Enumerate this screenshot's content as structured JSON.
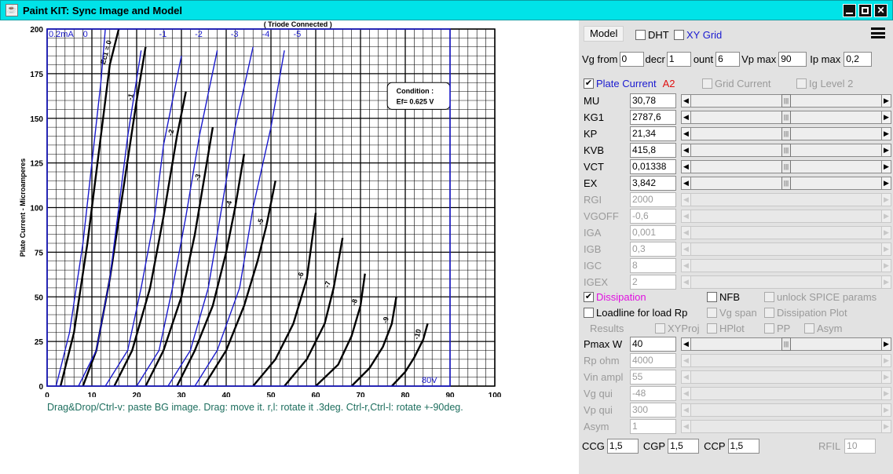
{
  "window": {
    "title": "Paint KIT: Sync Image and Model"
  },
  "help": "Drag&Drop/Ctrl-v: paste BG image. Drag: move it. r,l: rotate it .3deg. Ctrl-r,Ctrl-l: rotate +-90deg.",
  "chart_data": {
    "type": "line",
    "title": "( Triode Connected )",
    "ylabel": "Plate Current - Microamperes",
    "xlim": [
      0,
      100
    ],
    "ylim": [
      0,
      200
    ],
    "xticks": [
      "0",
      "10",
      "20",
      "30",
      "40",
      "50",
      "60",
      "70",
      "80",
      "90",
      "100"
    ],
    "yticks": [
      "0",
      "25",
      "50",
      "75",
      "100",
      "125",
      "150",
      "175",
      "200"
    ],
    "condition_title": "Condition :",
    "condition_value": "Ef= 0.625 V",
    "overlay_labels": {
      "ima": "0.2mA",
      "v": "80V"
    },
    "top_labels": [
      "0",
      "-1",
      "-2",
      "-3",
      "-4",
      "-5"
    ],
    "image_curves": [
      {
        "label": "Ec1 = 0",
        "x": [
          3,
          6,
          9,
          12,
          14,
          16
        ],
        "y": [
          0,
          30,
          80,
          140,
          180,
          200
        ]
      },
      {
        "label": "-1",
        "x": [
          8,
          11,
          14,
          17,
          20,
          22
        ],
        "y": [
          0,
          20,
          60,
          110,
          160,
          190
        ]
      },
      {
        "label": "-2",
        "x": [
          15,
          19,
          23,
          26,
          29,
          31
        ],
        "y": [
          0,
          20,
          55,
          95,
          140,
          165
        ]
      },
      {
        "label": "-3",
        "x": [
          22,
          26,
          30,
          33,
          35,
          37
        ],
        "y": [
          0,
          20,
          50,
          85,
          115,
          145
        ]
      },
      {
        "label": "-4",
        "x": [
          29,
          33,
          37,
          40,
          42,
          44
        ],
        "y": [
          0,
          20,
          45,
          75,
          100,
          130
        ]
      },
      {
        "label": "-5",
        "x": [
          35,
          40,
          44,
          47,
          49,
          51
        ],
        "y": [
          0,
          20,
          45,
          70,
          90,
          115
        ]
      },
      {
        "label": "-6",
        "x": [
          46,
          51,
          55,
          58,
          60
        ],
        "y": [
          0,
          15,
          35,
          60,
          97
        ]
      },
      {
        "label": "-7",
        "x": [
          53,
          58,
          62,
          64,
          66
        ],
        "y": [
          0,
          15,
          35,
          55,
          83
        ]
      },
      {
        "label": "-8",
        "x": [
          60,
          65,
          68,
          70,
          71
        ],
        "y": [
          0,
          12,
          28,
          45,
          63
        ]
      },
      {
        "label": "-9",
        "x": [
          68,
          72,
          75,
          77,
          78
        ],
        "y": [
          0,
          10,
          22,
          35,
          50
        ]
      },
      {
        "label": "-10",
        "x": [
          77,
          80,
          82,
          84,
          85
        ],
        "y": [
          0,
          8,
          16,
          26,
          35
        ]
      }
    ],
    "model_curves": [
      {
        "name": "0",
        "x": [
          2,
          5,
          8,
          10,
          12,
          13
        ],
        "y": [
          0,
          30,
          80,
          125,
          170,
          200
        ]
      },
      {
        "name": "-1",
        "x": [
          7,
          11,
          14,
          16,
          18,
          21
        ],
        "y": [
          0,
          20,
          60,
          100,
          140,
          188
        ]
      },
      {
        "name": "-2",
        "x": [
          13,
          18,
          21,
          24,
          26,
          30
        ],
        "y": [
          0,
          20,
          55,
          95,
          135,
          185
        ]
      },
      {
        "name": "-3",
        "x": [
          20,
          25,
          28,
          31,
          34,
          38
        ],
        "y": [
          0,
          20,
          55,
          95,
          140,
          188
        ]
      },
      {
        "name": "-4",
        "x": [
          27,
          32,
          36,
          39,
          42,
          46
        ],
        "y": [
          0,
          20,
          55,
          100,
          145,
          190
        ]
      },
      {
        "name": "-5",
        "x": [
          33,
          38,
          43,
          46,
          50,
          53
        ],
        "y": [
          0,
          20,
          55,
          100,
          145,
          188
        ]
      }
    ]
  },
  "controls": {
    "model_button": "Model",
    "dht": "DHT",
    "xy_grid": "XY Grid",
    "vg_from_label": "Vg from",
    "vg_from": "0",
    "decr_label": "decr",
    "decr": "1",
    "count_label": "ount",
    "count": "6",
    "vpmax_label": "Vp max",
    "vpmax": "90",
    "ipmax_label": "Ip max",
    "ipmax": "0,2",
    "plate_current": "Plate Current",
    "a2": "A2",
    "grid_current": "Grid Current",
    "ig_level": "Ig Level 2",
    "dissipation": "Dissipation",
    "nfb": "NFB",
    "unlock": "unlock SPICE params",
    "loadline": "Loadline for load Rp",
    "vg_span": "Vg span",
    "dissipation_plot": "Dissipation Plot",
    "results": "Results",
    "xyproj": "XYProj",
    "hplot": "HPlot",
    "pp": "PP",
    "asym_cb": "Asym",
    "ccg_label": "CCG",
    "ccg": "1,5",
    "cgp_label": "CGP",
    "cgp": "1,5",
    "ccp_label": "CCP",
    "ccp": "1,5",
    "rfil_label": "RFIL",
    "rfil": "10"
  },
  "params": [
    {
      "name": "MU",
      "value": "30,78",
      "enabled": true,
      "pos": 0.5
    },
    {
      "name": "KG1",
      "value": "2787,6",
      "enabled": true,
      "pos": 0.5
    },
    {
      "name": "KP",
      "value": "21,34",
      "enabled": true,
      "pos": 0.5
    },
    {
      "name": "KVB",
      "value": "415,8",
      "enabled": true,
      "pos": 0.5
    },
    {
      "name": "VCT",
      "value": "0,01338",
      "enabled": true,
      "pos": 0.5
    },
    {
      "name": "EX",
      "value": "3,842",
      "enabled": true,
      "pos": 0.5
    },
    {
      "name": "RGI",
      "value": "2000",
      "enabled": false
    },
    {
      "name": "VGOFF",
      "value": "-0,6",
      "enabled": false
    },
    {
      "name": "IGA",
      "value": "0,001",
      "enabled": false
    },
    {
      "name": "IGB",
      "value": "0,3",
      "enabled": false
    },
    {
      "name": "IGC",
      "value": "8",
      "enabled": false
    },
    {
      "name": "IGEX",
      "value": "2",
      "enabled": false
    }
  ],
  "params2": [
    {
      "name": "Pmax W",
      "value": "40",
      "enabled": true,
      "pos": 0.5
    },
    {
      "name": "Rp ohm",
      "value": "4000",
      "enabled": false
    },
    {
      "name": "Vin ampl",
      "value": "55",
      "enabled": false
    },
    {
      "name": "Vg qui",
      "value": "-48",
      "enabled": false
    },
    {
      "name": "Vp qui",
      "value": "300",
      "enabled": false
    },
    {
      "name": "Asym",
      "value": "1",
      "enabled": false
    }
  ]
}
